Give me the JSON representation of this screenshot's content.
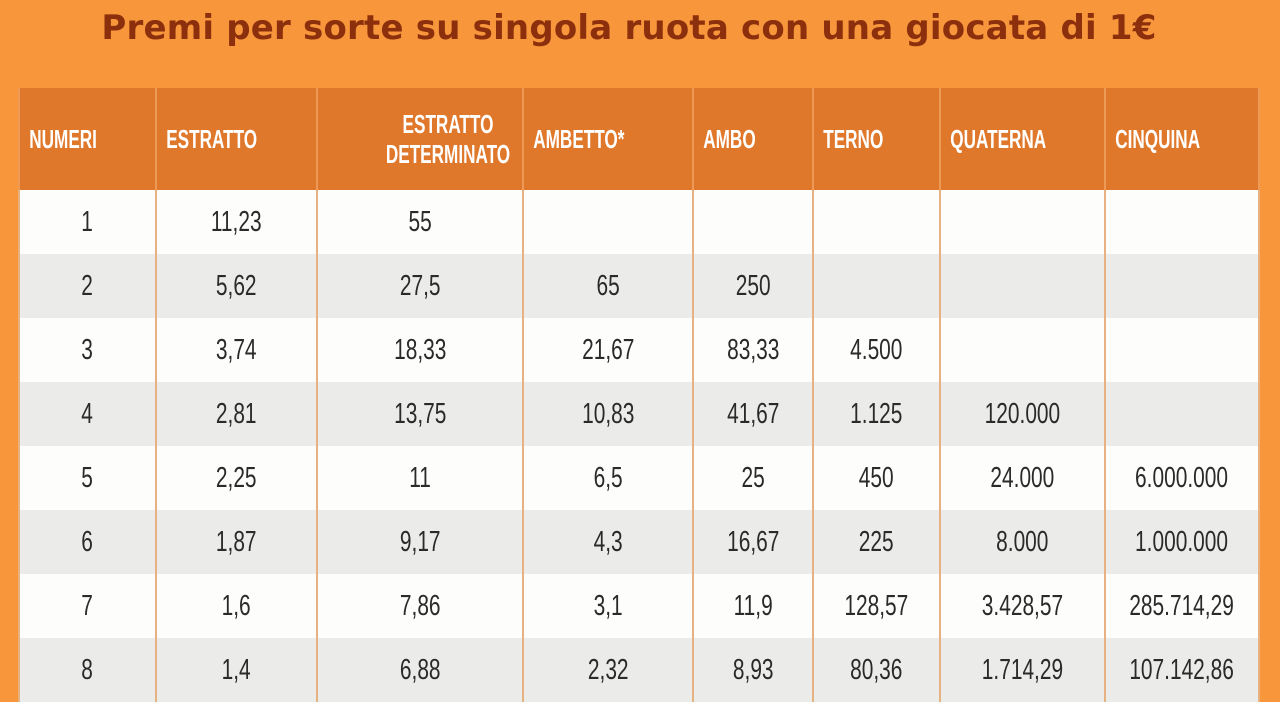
{
  "title": "Premi per sorte su singola ruota con una giocata di 1€",
  "colors": {
    "background": "#f8963c",
    "header": "#e0782c",
    "title": "#8b2f0c",
    "row_light": "#fdfdfb",
    "row_dark": "#ebebea"
  },
  "headers": [
    "NUMERI",
    "ESTRATTO",
    "ESTRATTO DETERMINATO",
    "AMBETTO*",
    "AMBO",
    "TERNO",
    "QUATERNA",
    "CINQUINA"
  ],
  "rows": [
    [
      "1",
      "11,23",
      "55",
      "",
      "",
      "",
      "",
      ""
    ],
    [
      "2",
      "5,62",
      "27,5",
      "65",
      "250",
      "",
      "",
      ""
    ],
    [
      "3",
      "3,74",
      "18,33",
      "21,67",
      "83,33",
      "4.500",
      "",
      ""
    ],
    [
      "4",
      "2,81",
      "13,75",
      "10,83",
      "41,67",
      "1.125",
      "120.000",
      ""
    ],
    [
      "5",
      "2,25",
      "11",
      "6,5",
      "25",
      "450",
      "24.000",
      "6.000.000"
    ],
    [
      "6",
      "1,87",
      "9,17",
      "4,3",
      "16,67",
      "225",
      "8.000",
      "1.000.000"
    ],
    [
      "7",
      "1,6",
      "7,86",
      "3,1",
      "11,9",
      "128,57",
      "3.428,57",
      "285.714,29"
    ],
    [
      "8",
      "1,4",
      "6,88",
      "2,32",
      "8,93",
      "80,36",
      "1.714,29",
      "107.142,86"
    ]
  ]
}
